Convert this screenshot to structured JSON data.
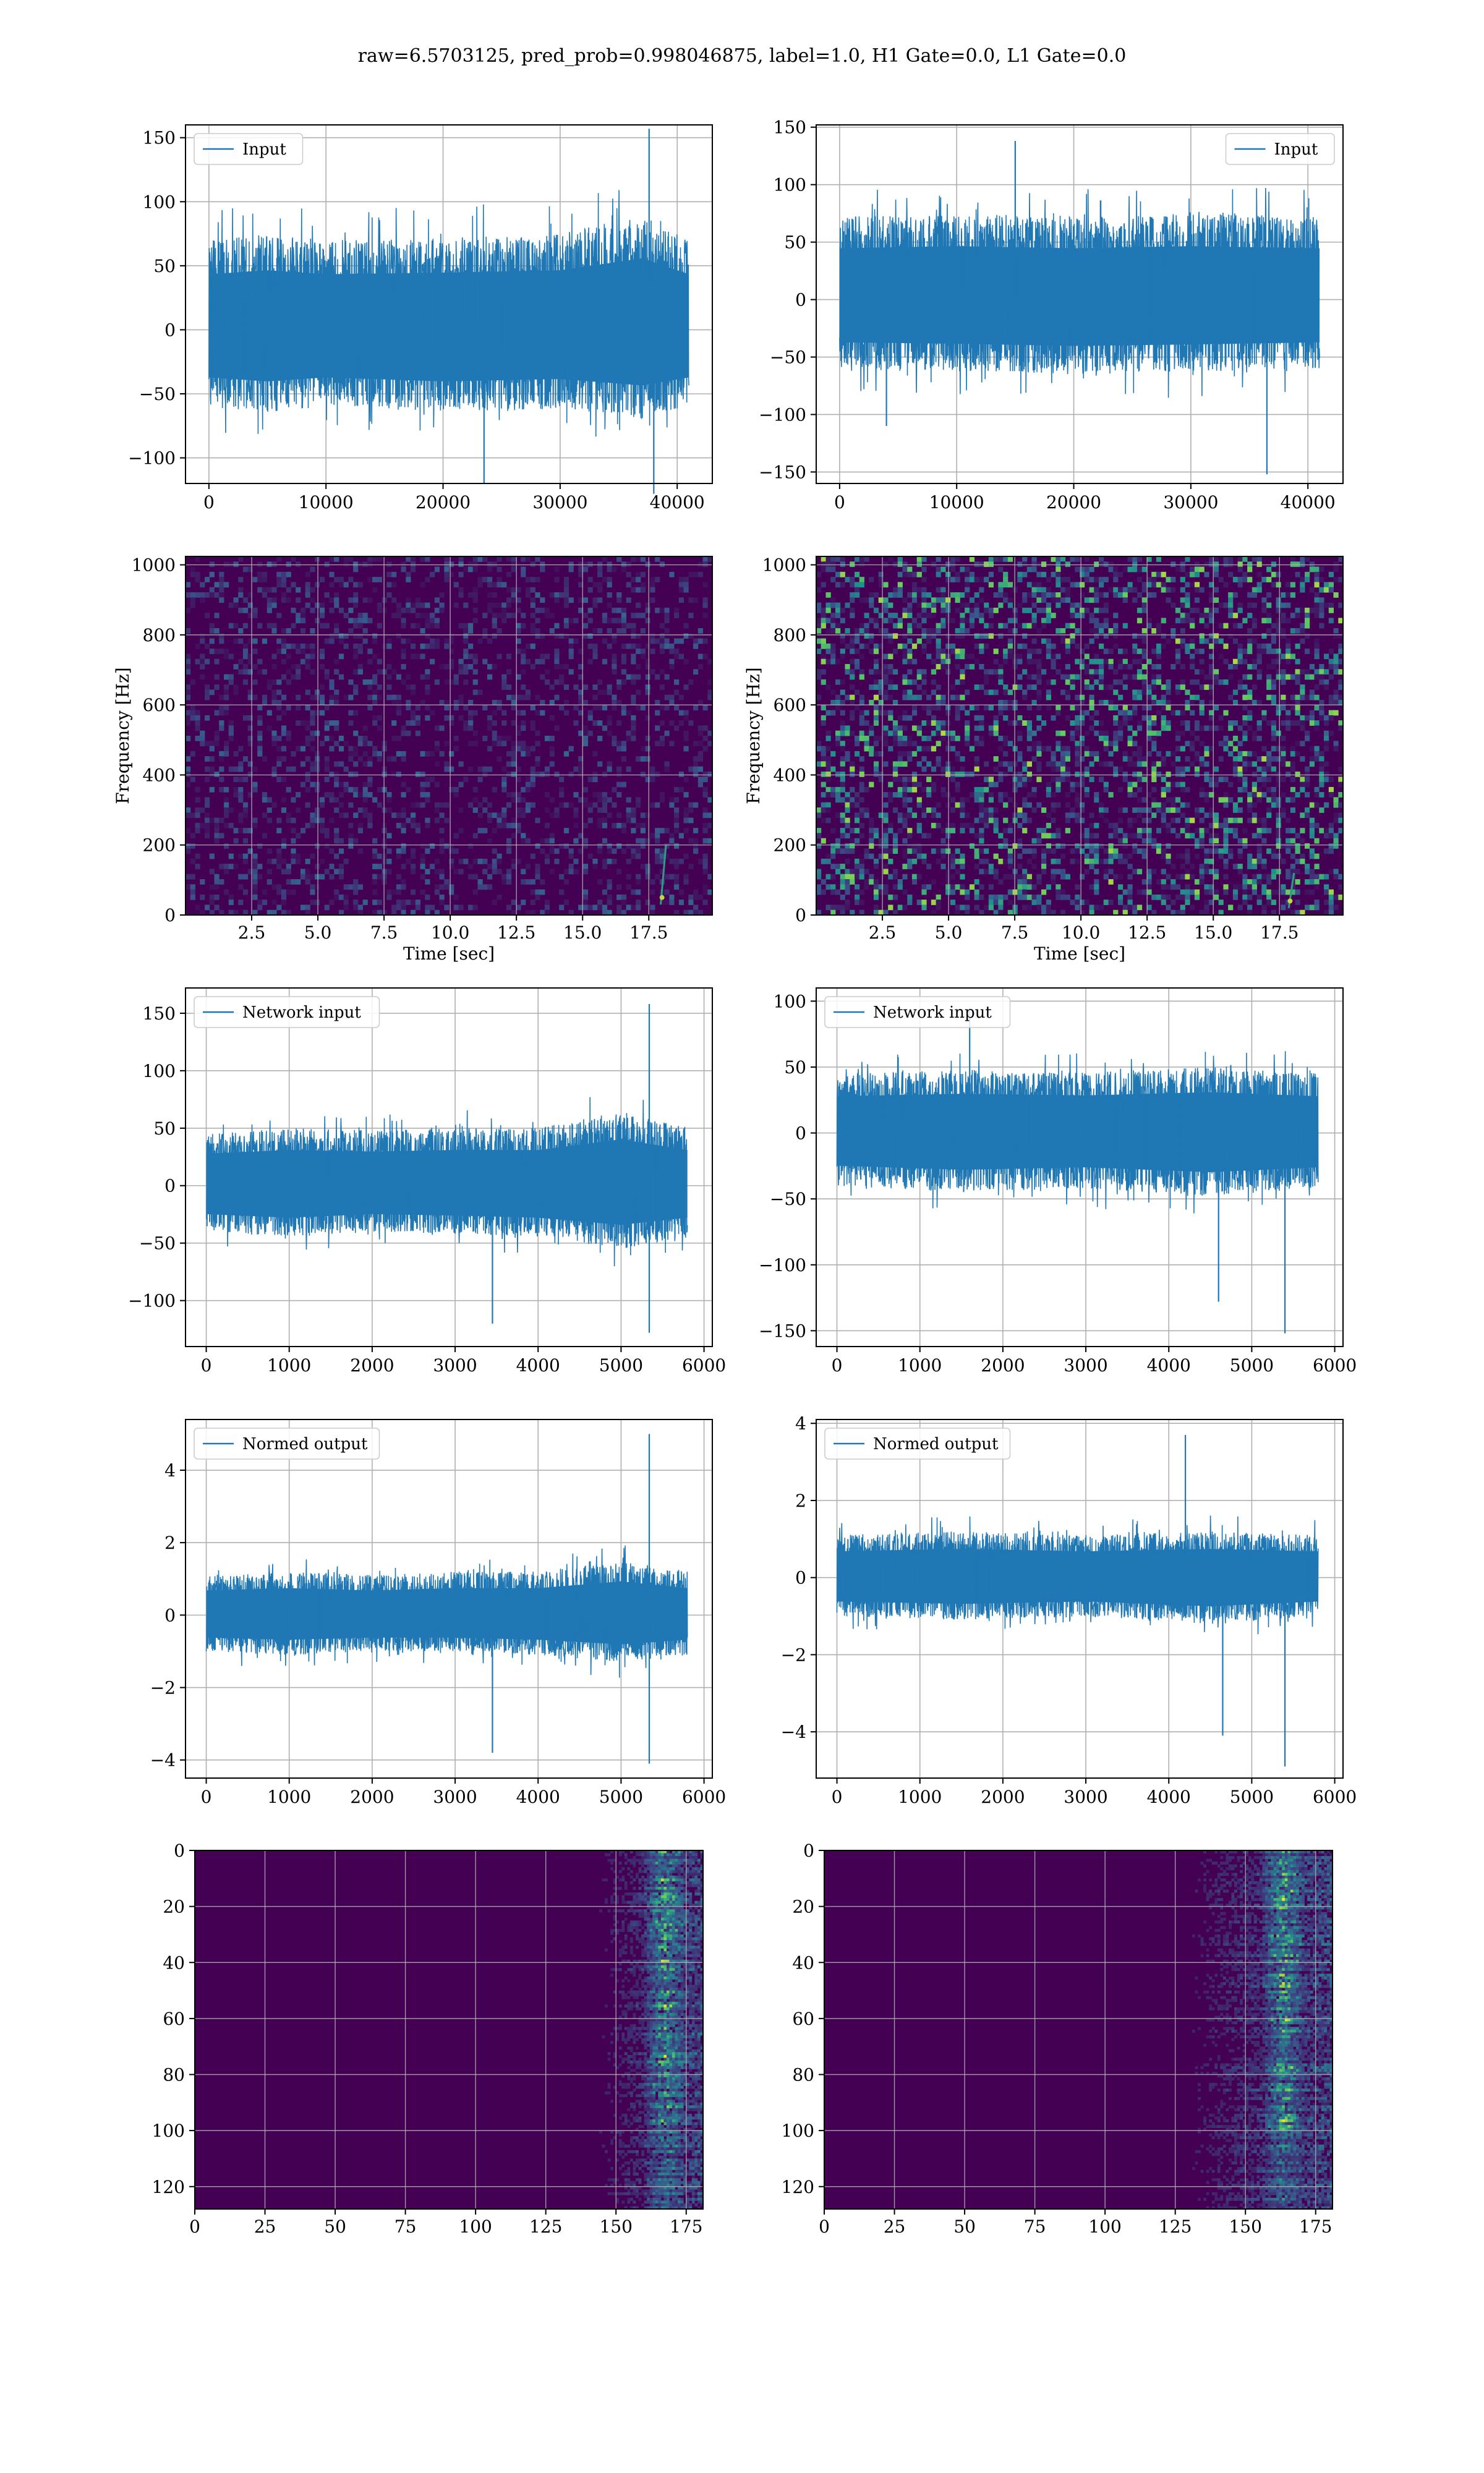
{
  "figure": {
    "title": "raw=6.5703125, pred_prob=0.998046875, label=1.0, H1 Gate=0.0, L1 Gate=0.0"
  },
  "colors": {
    "series": "#1f77b4",
    "grid": "#b0b0b0",
    "viridis_low": "#440154",
    "viridis_mid": "#21918c",
    "viridis_high": "#fde725"
  },
  "chart_data": [
    {
      "type": "line",
      "series": [
        {
          "name": "Input",
          "envelope": [
            [
              0,
              -60,
              70
            ],
            [
              5000,
              -65,
              75
            ],
            [
              10000,
              -60,
              70
            ],
            [
              20000,
              -65,
              72
            ],
            [
              30000,
              -62,
              75
            ],
            [
              37000,
              -70,
              90
            ],
            [
              41000,
              -60,
              70
            ]
          ]
        }
      ],
      "peaks": [
        [
          37600,
          157
        ],
        [
          38000,
          -128
        ],
        [
          23500,
          -120
        ]
      ],
      "xlim": [
        -2000,
        43000
      ],
      "ylim": [
        -120,
        160
      ],
      "xticks": [
        0,
        10000,
        20000,
        30000,
        40000
      ],
      "yticks": [
        -100,
        -50,
        0,
        50,
        100,
        150
      ],
      "legend": "top-left",
      "grid": true
    },
    {
      "type": "line",
      "series": [
        {
          "name": "Input",
          "envelope": [
            [
              0,
              -60,
              72
            ],
            [
              10000,
              -62,
              75
            ],
            [
              20000,
              -65,
              72
            ],
            [
              30000,
              -63,
              75
            ],
            [
              41000,
              -60,
              72
            ]
          ]
        }
      ],
      "peaks": [
        [
          15000,
          138
        ],
        [
          36500,
          -152
        ],
        [
          4000,
          -110
        ]
      ],
      "xlim": [
        -2000,
        43000
      ],
      "ylim": [
        -160,
        152
      ],
      "xticks": [
        0,
        10000,
        20000,
        30000,
        40000
      ],
      "yticks": [
        -150,
        -100,
        -50,
        0,
        50,
        100,
        150
      ],
      "legend": "top-right",
      "grid": true
    },
    {
      "type": "heatmap",
      "xlabel": "Time [sec]",
      "ylabel": "Frequency [Hz]",
      "xlim": [
        0,
        19.9
      ],
      "ylim": [
        0,
        1024
      ],
      "xticks": [
        2.5,
        5.0,
        7.5,
        10.0,
        12.5,
        15.0,
        17.5
      ],
      "yticks": [
        0,
        200,
        400,
        600,
        800,
        1000
      ],
      "noise_level": 0.08,
      "chirp": {
        "t": 18.1,
        "f_min": 30,
        "f_max": 200
      },
      "grid": true
    },
    {
      "type": "heatmap",
      "xlabel": "Time [sec]",
      "ylabel": "Frequency [Hz]",
      "xlim": [
        0,
        19.9
      ],
      "ylim": [
        0,
        1024
      ],
      "xticks": [
        2.5,
        5.0,
        7.5,
        10.0,
        12.5,
        15.0,
        17.5
      ],
      "yticks": [
        0,
        200,
        400,
        600,
        800,
        1000
      ],
      "noise_level": 0.22,
      "chirp": {
        "t": 18.0,
        "f_min": 20,
        "f_max": 120
      },
      "grid": true
    },
    {
      "type": "line",
      "series": [
        {
          "name": "Network input",
          "envelope": [
            [
              0,
              -40,
              45
            ],
            [
              1000,
              -45,
              50
            ],
            [
              2000,
              -40,
              48
            ],
            [
              3000,
              -42,
              50
            ],
            [
              4000,
              -45,
              50
            ],
            [
              5000,
              -55,
              65
            ],
            [
              5800,
              -45,
              50
            ]
          ]
        }
      ],
      "peaks": [
        [
          5340,
          158
        ],
        [
          5340,
          -128
        ],
        [
          3450,
          -120
        ]
      ],
      "xlim": [
        -250,
        6100
      ],
      "ylim": [
        -140,
        172
      ],
      "xticks": [
        0,
        1000,
        2000,
        3000,
        4000,
        5000,
        6000
      ],
      "yticks": [
        -100,
        -50,
        0,
        50,
        100,
        150
      ],
      "legend": "top-left",
      "grid": true
    },
    {
      "type": "line",
      "series": [
        {
          "name": "Network input",
          "envelope": [
            [
              0,
              -40,
              45
            ],
            [
              1500,
              -45,
              48
            ],
            [
              3000,
              -42,
              46
            ],
            [
              4500,
              -48,
              50
            ],
            [
              5800,
              -42,
              45
            ]
          ]
        }
      ],
      "peaks": [
        [
          5400,
          -152
        ],
        [
          1600,
          95
        ],
        [
          4600,
          -128
        ]
      ],
      "xlim": [
        -250,
        6100
      ],
      "ylim": [
        -162,
        110
      ],
      "xticks": [
        0,
        1000,
        2000,
        3000,
        4000,
        5000,
        6000
      ],
      "yticks": [
        -150,
        -100,
        -50,
        0,
        50,
        100
      ],
      "legend": "top-left",
      "grid": true
    },
    {
      "type": "line",
      "series": [
        {
          "name": "Normed output",
          "envelope": [
            [
              0,
              -1.0,
              1.1
            ],
            [
              1000,
              -1.1,
              1.2
            ],
            [
              2000,
              -1.0,
              1.1
            ],
            [
              3000,
              -1.0,
              1.2
            ],
            [
              4000,
              -1.1,
              1.2
            ],
            [
              5000,
              -1.3,
              1.5
            ],
            [
              5800,
              -1.1,
              1.2
            ]
          ]
        }
      ],
      "peaks": [
        [
          5340,
          5.0
        ],
        [
          5340,
          -4.1
        ],
        [
          3450,
          -3.8
        ]
      ],
      "xlim": [
        -250,
        6100
      ],
      "ylim": [
        -4.5,
        5.4
      ],
      "xticks": [
        0,
        1000,
        2000,
        3000,
        4000,
        5000,
        6000
      ],
      "yticks": [
        -4,
        -2,
        0,
        2,
        4
      ],
      "legend": "top-left",
      "grid": true
    },
    {
      "type": "line",
      "series": [
        {
          "name": "Normed output",
          "envelope": [
            [
              0,
              -1.0,
              1.1
            ],
            [
              1500,
              -1.1,
              1.2
            ],
            [
              3000,
              -1.0,
              1.1
            ],
            [
              4500,
              -1.2,
              1.2
            ],
            [
              5800,
              -1.0,
              1.1
            ]
          ]
        }
      ],
      "peaks": [
        [
          5400,
          -4.9
        ],
        [
          4200,
          3.7
        ],
        [
          4650,
          -4.1
        ]
      ],
      "xlim": [
        -250,
        6100
      ],
      "ylim": [
        -5.2,
        4.1
      ],
      "xticks": [
        0,
        1000,
        2000,
        3000,
        4000,
        5000,
        6000
      ],
      "yticks": [
        -4,
        -2,
        0,
        2,
        4
      ],
      "legend": "top-left",
      "grid": true
    },
    {
      "type": "heatmap",
      "xlim": [
        0,
        181
      ],
      "ylim": [
        128,
        0
      ],
      "xticks": [
        0,
        25,
        50,
        75,
        100,
        125,
        150,
        175
      ],
      "yticks": [
        0,
        20,
        40,
        60,
        80,
        100,
        120
      ],
      "activity_onset": 140,
      "hot_column": 167,
      "grid": true
    },
    {
      "type": "heatmap",
      "xlim": [
        0,
        181
      ],
      "ylim": [
        128,
        0
      ],
      "xticks": [
        0,
        25,
        50,
        75,
        100,
        125,
        150,
        175
      ],
      "yticks": [
        0,
        20,
        40,
        60,
        80,
        100,
        120
      ],
      "activity_onset": 125,
      "hot_column": 163,
      "grid": true
    }
  ]
}
